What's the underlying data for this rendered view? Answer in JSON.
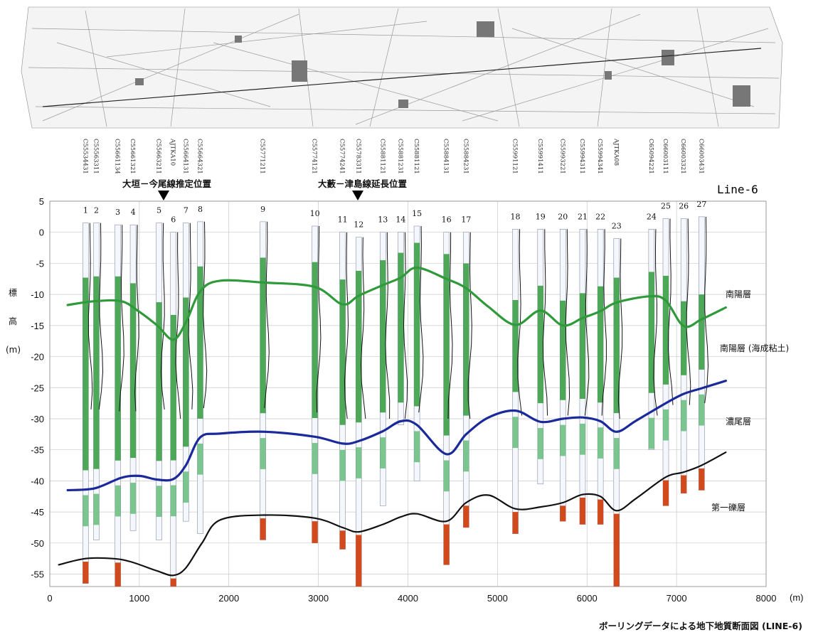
{
  "line_title": "Line-6",
  "footer_caption": "ボーリングデータによる地下地質断面図 (LINE-6)",
  "fault_markers": [
    {
      "label": "大垣－今尾線推定位置",
      "x": 1300
    },
    {
      "label": "大藪－津島線延長位置",
      "x": 3400
    }
  ],
  "layer_labels": [
    {
      "label": "南陽層",
      "id": "nanyo"
    },
    {
      "label": "南陽層 (海成粘土)",
      "id": "nanyo-clay"
    },
    {
      "label": "濃尾層",
      "id": "nobi"
    },
    {
      "label": "第一礫層",
      "id": "gravel1"
    }
  ],
  "y_axis_label": [
    "標",
    "高",
    "(m)"
  ],
  "x_unit": "(m)",
  "colors": {
    "green_layer": "#2f9a3a",
    "blue_layer": "#1a2a9a",
    "black_layer": "#111111",
    "sand_green": "#5cb874",
    "gravel_red": "#d24a1c"
  },
  "chart_data": {
    "type": "diagram",
    "xlim": [
      0,
      8000
    ],
    "ylim": [
      -57,
      5
    ],
    "x_ticks": [
      0,
      1000,
      2000,
      3000,
      4000,
      5000,
      6000,
      7000,
      8000
    ],
    "y_ticks": [
      5,
      0,
      -5,
      -10,
      -15,
      -20,
      -25,
      -30,
      -35,
      -40,
      -45,
      -50,
      -55
    ],
    "boreholes": [
      {
        "no": "1",
        "code": "C55534431",
        "x": 400,
        "top": 1.5,
        "bottom": -56.5
      },
      {
        "no": "2",
        "code": "C55563311",
        "x": 520,
        "top": 1.5,
        "bottom": -49.5
      },
      {
        "no": "3",
        "code": "C55661134",
        "x": 760,
        "top": 1.2,
        "bottom": -57
      },
      {
        "no": "4",
        "code": "C55661321",
        "x": 930,
        "top": 1.2,
        "bottom": -48
      },
      {
        "no": "5",
        "code": "C55663211",
        "x": 1220,
        "top": 1.5,
        "bottom": -49.5
      },
      {
        "no": "6",
        "code": "AJTKA10",
        "x": 1380,
        "top": 0,
        "bottom": -57
      },
      {
        "no": "7",
        "code": "C55664131",
        "x": 1520,
        "top": 1.5,
        "bottom": -46.5
      },
      {
        "no": "8",
        "code": "C55664321",
        "x": 1680,
        "top": 1.7,
        "bottom": -48.5
      },
      {
        "no": "9",
        "code": "C55771211",
        "x": 2380,
        "top": 1.7,
        "bottom": -49.5
      },
      {
        "no": "10",
        "code": "C55774121",
        "x": 2960,
        "top": 1.0,
        "bottom": -50
      },
      {
        "no": "11",
        "code": "C55774241",
        "x": 3270,
        "top": 0,
        "bottom": -51
      },
      {
        "no": "12",
        "code": "C55783311",
        "x": 3450,
        "top": -0.8,
        "bottom": -57
      },
      {
        "no": "13",
        "code": "C55881121",
        "x": 3720,
        "top": 0,
        "bottom": -44
      },
      {
        "no": "14",
        "code": "C55881231",
        "x": 3920,
        "top": 0,
        "bottom": -31
      },
      {
        "no": "15",
        "code": "C55881121",
        "x": 4100,
        "top": 1.0,
        "bottom": -40
      },
      {
        "no": "16",
        "code": "C55884131",
        "x": 4430,
        "top": 0,
        "bottom": -53.5
      },
      {
        "no": "17",
        "code": "C55884231",
        "x": 4650,
        "top": 0,
        "bottom": -47.5
      },
      {
        "no": "18",
        "code": "C55991121",
        "x": 5200,
        "top": 0.5,
        "bottom": -48.5
      },
      {
        "no": "19",
        "code": "C55991411",
        "x": 5480,
        "top": 0.5,
        "bottom": -40.5
      },
      {
        "no": "20",
        "code": "C55993221",
        "x": 5730,
        "top": 0.5,
        "bottom": -46.5
      },
      {
        "no": "21",
        "code": "C55994311",
        "x": 5950,
        "top": 0.5,
        "bottom": -47
      },
      {
        "no": "22",
        "code": "C55994341",
        "x": 6150,
        "top": 0.5,
        "bottom": -47
      },
      {
        "no": "23",
        "code": "AJTKA08",
        "x": 6330,
        "top": -1,
        "bottom": -57
      },
      {
        "no": "24",
        "code": "C65094221",
        "x": 6720,
        "top": 0.5,
        "bottom": -35
      },
      {
        "no": "25",
        "code": "C66003111",
        "x": 6880,
        "top": 2.2,
        "bottom": -44
      },
      {
        "no": "26",
        "code": "C66003321",
        "x": 7080,
        "top": 2.2,
        "bottom": -42
      },
      {
        "no": "27",
        "code": "C66003431",
        "x": 7280,
        "top": 2.5,
        "bottom": -41.5
      }
    ],
    "surfaces": [
      {
        "name": "南陽層 base",
        "color": "#2f9a3a",
        "points": [
          [
            200,
            -11.7
          ],
          [
            500,
            -11.1
          ],
          [
            800,
            -11.1
          ],
          [
            1000,
            -12.8
          ],
          [
            1200,
            -15
          ],
          [
            1380,
            -17.3
          ],
          [
            1520,
            -14.5
          ],
          [
            1680,
            -9.5
          ],
          [
            1900,
            -7.8
          ],
          [
            2400,
            -8.1
          ],
          [
            2960,
            -8.8
          ],
          [
            3270,
            -11.6
          ],
          [
            3450,
            -10.2
          ],
          [
            3720,
            -8.5
          ],
          [
            3920,
            -7.3
          ],
          [
            4100,
            -5.7
          ],
          [
            4430,
            -7.5
          ],
          [
            4650,
            -9
          ],
          [
            4900,
            -12
          ],
          [
            5200,
            -14.9
          ],
          [
            5480,
            -12.6
          ],
          [
            5730,
            -15
          ],
          [
            5950,
            -13.8
          ],
          [
            6150,
            -12.7
          ],
          [
            6330,
            -11.3
          ],
          [
            6700,
            -10.3
          ],
          [
            6880,
            -11
          ],
          [
            7080,
            -15.1
          ],
          [
            7280,
            -14
          ],
          [
            7550,
            -12.1
          ]
        ]
      },
      {
        "name": "濃尾層 top",
        "color": "#1a2a9a",
        "points": [
          [
            200,
            -41.5
          ],
          [
            500,
            -41.2
          ],
          [
            800,
            -39.5
          ],
          [
            1000,
            -39.2
          ],
          [
            1200,
            -39.8
          ],
          [
            1380,
            -39.7
          ],
          [
            1520,
            -37.5
          ],
          [
            1680,
            -33
          ],
          [
            1900,
            -32.4
          ],
          [
            2400,
            -32.1
          ],
          [
            2960,
            -32.9
          ],
          [
            3270,
            -34
          ],
          [
            3450,
            -33.6
          ],
          [
            3720,
            -32
          ],
          [
            3920,
            -30.4
          ],
          [
            4100,
            -31
          ],
          [
            4430,
            -35.7
          ],
          [
            4650,
            -32.5
          ],
          [
            4900,
            -29.8
          ],
          [
            5200,
            -28.7
          ],
          [
            5480,
            -30.5
          ],
          [
            5730,
            -30
          ],
          [
            5950,
            -29.8
          ],
          [
            6150,
            -30.4
          ],
          [
            6330,
            -32.1
          ],
          [
            6550,
            -30.3
          ],
          [
            6880,
            -27.5
          ],
          [
            7080,
            -26
          ],
          [
            7280,
            -25.1
          ],
          [
            7550,
            -23.9
          ]
        ]
      },
      {
        "name": "第一礫層 top",
        "color": "#111111",
        "points": [
          [
            100,
            -53.5
          ],
          [
            400,
            -52.5
          ],
          [
            700,
            -52.5
          ],
          [
            900,
            -53
          ],
          [
            1200,
            -54.5
          ],
          [
            1380,
            -55.2
          ],
          [
            1520,
            -54
          ],
          [
            1700,
            -50
          ],
          [
            1900,
            -46.3
          ],
          [
            2400,
            -45.5
          ],
          [
            2960,
            -46
          ],
          [
            3270,
            -47.5
          ],
          [
            3450,
            -48.2
          ],
          [
            3720,
            -47
          ],
          [
            3920,
            -45.8
          ],
          [
            4100,
            -45.3
          ],
          [
            4430,
            -46.5
          ],
          [
            4650,
            -43.5
          ],
          [
            4900,
            -42.3
          ],
          [
            5200,
            -44.5
          ],
          [
            5480,
            -44.2
          ],
          [
            5730,
            -43.5
          ],
          [
            5950,
            -42.2
          ],
          [
            6150,
            -42.5
          ],
          [
            6330,
            -44.8
          ],
          [
            6550,
            -42.8
          ],
          [
            6880,
            -39.4
          ],
          [
            7080,
            -38.6
          ],
          [
            7280,
            -37.5
          ],
          [
            7550,
            -35.4
          ]
        ]
      }
    ]
  }
}
